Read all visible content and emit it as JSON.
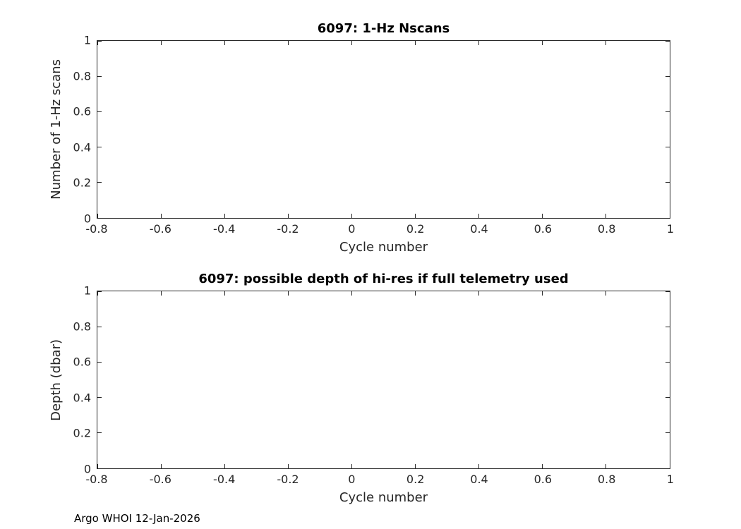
{
  "footer": {
    "text": "Argo WHOI 12-Jan-2026"
  },
  "chart_data": [
    {
      "type": "line",
      "title": "6097: 1-Hz Nscans",
      "xlabel": "Cycle number",
      "ylabel": "Number of 1-Hz scans",
      "xlim": [
        -0.8,
        1
      ],
      "ylim": [
        0,
        1
      ],
      "xticks": [
        -0.8,
        -0.6,
        -0.4,
        -0.2,
        0,
        0.2,
        0.4,
        0.6,
        0.8,
        1
      ],
      "yticks": [
        0,
        0.2,
        0.4,
        0.6,
        0.8,
        1
      ],
      "xtick_labels": [
        "-0.8",
        "-0.6",
        "-0.4",
        "-0.2",
        "0",
        "0.2",
        "0.4",
        "0.6",
        "0.8",
        "1"
      ],
      "ytick_labels": [
        "0",
        "0.2",
        "0.4",
        "0.6",
        "0.8",
        "1"
      ],
      "series": [],
      "grid": false,
      "legend": null
    },
    {
      "type": "line",
      "title": "6097: possible depth of hi-res if full telemetry used",
      "xlabel": "Cycle number",
      "ylabel": "Depth (dbar)",
      "xlim": [
        -0.8,
        1
      ],
      "ylim": [
        0,
        1
      ],
      "xticks": [
        -0.8,
        -0.6,
        -0.4,
        -0.2,
        0,
        0.2,
        0.4,
        0.6,
        0.8,
        1
      ],
      "yticks": [
        0,
        0.2,
        0.4,
        0.6,
        0.8,
        1
      ],
      "xtick_labels": [
        "-0.8",
        "-0.6",
        "-0.4",
        "-0.2",
        "0",
        "0.2",
        "0.4",
        "0.6",
        "0.8",
        "1"
      ],
      "ytick_labels": [
        "0",
        "0.2",
        "0.4",
        "0.6",
        "0.8",
        "1"
      ],
      "series": [],
      "grid": false,
      "legend": null
    }
  ]
}
